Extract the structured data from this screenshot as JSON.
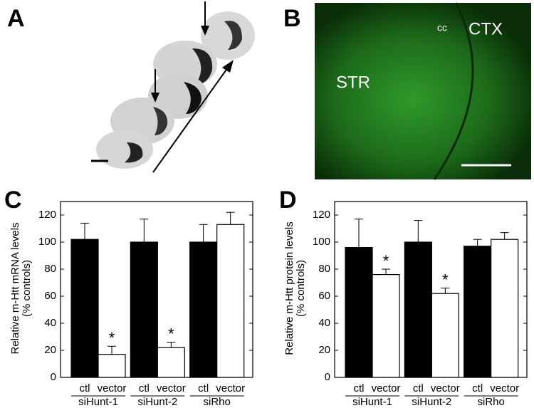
{
  "panel_labels": [
    "A",
    "B",
    "C",
    "D"
  ],
  "image_labels": [
    "cc",
    "CTX",
    "STR"
  ],
  "chart_data": [
    {
      "type": "bar",
      "ylabel": [
        "Relative m-Htt mRNA levels",
        "(% controls)"
      ],
      "categories": [
        "siHunt-1",
        "siHunt-2",
        "siRho"
      ],
      "series": [
        {
          "name": "ctl",
          "color": "#000000",
          "values": [
            102,
            100,
            100
          ],
          "errors": [
            12,
            17,
            13
          ]
        },
        {
          "name": "vector",
          "color": "#ffffff",
          "values": [
            17,
            22,
            113
          ],
          "errors": [
            6,
            4,
            9
          ],
          "annotations": [
            "*",
            "*",
            null
          ]
        }
      ],
      "ylim": [
        0,
        130
      ],
      "yticks": [
        0,
        20,
        40,
        60,
        80,
        100,
        120
      ]
    },
    {
      "type": "bar",
      "ylabel": [
        "Relative m-Htt protein levels",
        "(% controls)"
      ],
      "categories": [
        "siHunt-1",
        "siHunt-2",
        "siRho"
      ],
      "series": [
        {
          "name": "ctl",
          "color": "#000000",
          "values": [
            96,
            100,
            97
          ],
          "errors": [
            21,
            16,
            5
          ]
        },
        {
          "name": "vector",
          "color": "#ffffff",
          "values": [
            76,
            62,
            102
          ],
          "errors": [
            4,
            4,
            5
          ],
          "annotations": [
            "*",
            "*",
            null
          ]
        }
      ],
      "ylim": [
        0,
        130
      ],
      "yticks": [
        0,
        20,
        40,
        60,
        80,
        100,
        120
      ]
    }
  ]
}
